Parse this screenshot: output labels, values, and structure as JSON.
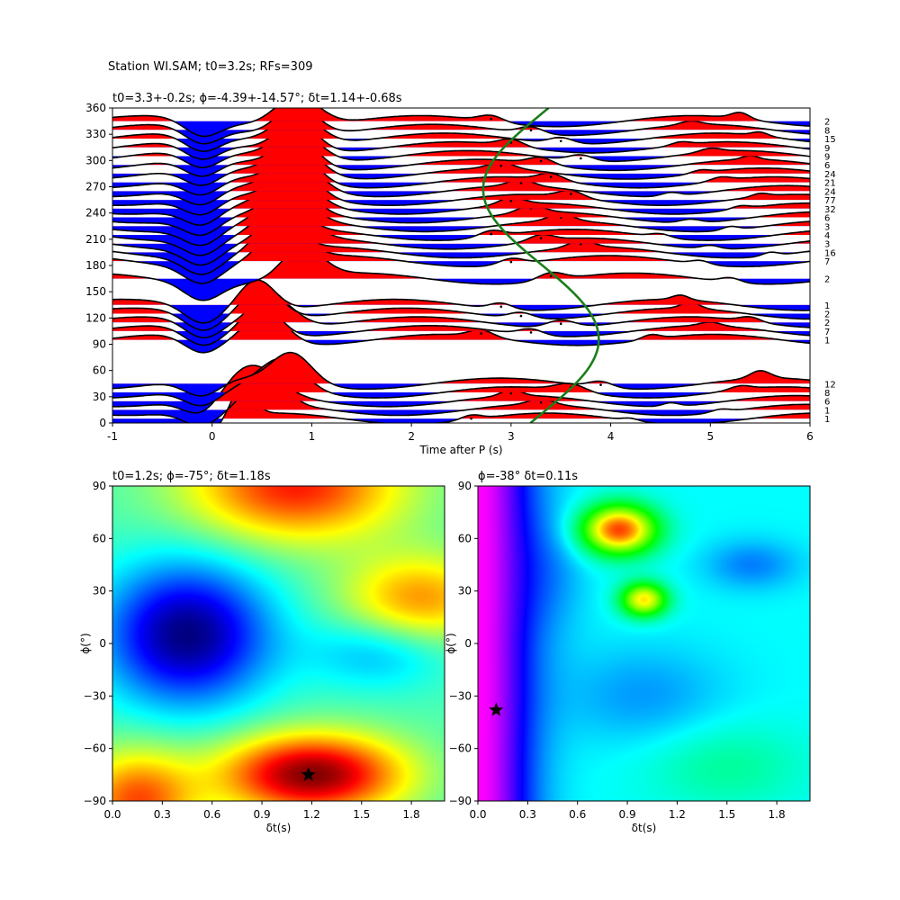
{
  "figure": {
    "suptitle": "Station WI.SAM; t0=3.2s; RFs=309"
  },
  "chart_data": [
    {
      "type": "line",
      "name": "receiver-function-wiggles",
      "title": "t0=3.3+-0.2s; ϕ=-4.39+-14.57°; δt=1.14+-0.68s",
      "xlabel": "Time after P (s)",
      "ylabel": "",
      "xlim": [
        -1,
        6
      ],
      "ylim": [
        0,
        360
      ],
      "xticks": [
        -1,
        0,
        1,
        2,
        3,
        4,
        5,
        6
      ],
      "yticks": [
        0,
        30,
        60,
        90,
        120,
        150,
        180,
        210,
        240,
        270,
        300,
        330,
        360
      ],
      "colors": {
        "positive": "#ff0000",
        "negative": "#0000ff",
        "curve": "#1a7f1a",
        "line": "#000000"
      },
      "traces": [
        {
          "baz": 5,
          "count": "1",
          "c": [
            [
              0.3,
              0.11,
              1.0
            ],
            [
              0.15,
              0.1,
              2.6
            ],
            [
              0.08,
              0.08,
              4.2
            ]
          ]
        },
        {
          "baz": 15,
          "count": "1",
          "c": [
            [
              0.55,
              0.18,
              0.5
            ],
            [
              0.18,
              0.12,
              3.3
            ],
            [
              0.1,
              0.09,
              5.1
            ]
          ]
        },
        {
          "baz": 25,
          "count": "6",
          "c": [
            [
              0.4,
              0.25,
              0.2
            ],
            [
              0.2,
              0.1,
              3.0
            ],
            [
              0.12,
              0.08,
              4.6
            ]
          ]
        },
        {
          "baz": 35,
          "count": "8",
          "c": [
            [
              0.7,
              0.22,
              0.8
            ],
            [
              0.25,
              0.15,
              3.6
            ],
            [
              0.12,
              0.1,
              5.3
            ]
          ]
        },
        {
          "baz": 45,
          "count": "12",
          "c": [
            [
              0.8,
              0.2,
              1.3
            ],
            [
              0.2,
              0.12,
              3.9
            ],
            [
              0.25,
              0.1,
              5.5
            ]
          ]
        },
        {
          "baz": 95,
          "count": "1",
          "c": [
            [
              0.55,
              0.2,
              1.1
            ],
            [
              0.22,
              0.12,
              2.7
            ],
            [
              0.15,
              0.09,
              4.4
            ]
          ]
        },
        {
          "baz": 105,
          "count": "7",
          "c": [
            [
              0.5,
              0.18,
              0.6
            ],
            [
              0.2,
              0.12,
              3.2
            ],
            [
              0.12,
              0.1,
              5.0
            ]
          ]
        },
        {
          "baz": 115,
          "count": "2",
          "c": [
            [
              0.6,
              0.22,
              0.9
            ],
            [
              0.25,
              0.14,
              3.5
            ],
            [
              0.15,
              0.1,
              5.4
            ]
          ]
        },
        {
          "baz": 125,
          "count": "2",
          "c": [
            [
              0.5,
              0.2,
              1.2
            ],
            [
              0.2,
              0.12,
              3.1
            ],
            [
              0.2,
              0.09,
              4.8
            ]
          ]
        },
        {
          "baz": 135,
          "count": "1",
          "c": [
            [
              0.45,
              0.18,
              0.4
            ],
            [
              0.2,
              0.11,
              2.9
            ],
            [
              0.15,
              0.08,
              4.7
            ]
          ]
        },
        {
          "baz": 165,
          "count": "2",
          "c": [
            [
              0.9,
              0.2,
              0.7
            ],
            [
              0.25,
              0.13,
              3.4
            ],
            [
              0.15,
              0.1,
              5.2
            ]
          ]
        },
        {
          "baz": 185,
          "count": "7",
          "c": [
            [
              0.7,
              0.22,
              1.0
            ],
            [
              0.2,
              0.12,
              3.0
            ],
            [
              0.12,
              0.09,
              4.9
            ]
          ]
        },
        {
          "baz": 195,
          "count": "16",
          "c": [
            [
              0.65,
              0.2,
              0.3
            ],
            [
              0.22,
              0.12,
              3.7
            ],
            [
              0.12,
              0.08,
              5.6
            ]
          ]
        },
        {
          "baz": 205,
          "count": "3",
          "c": [
            [
              0.75,
              0.22,
              0.8
            ],
            [
              0.2,
              0.12,
              3.3
            ],
            [
              0.12,
              0.09,
              5.0
            ]
          ]
        },
        {
          "baz": 215,
          "count": "4",
          "c": [
            [
              0.7,
              0.2,
              1.1
            ],
            [
              0.2,
              0.12,
              2.8
            ],
            [
              0.12,
              0.1,
              4.5
            ]
          ]
        },
        {
          "baz": 225,
          "count": "3",
          "c": [
            [
              0.75,
              0.22,
              0.5
            ],
            [
              0.22,
              0.12,
              3.5
            ],
            [
              0.12,
              0.08,
              5.2
            ]
          ]
        },
        {
          "baz": 235,
          "count": "6",
          "c": [
            [
              0.8,
              0.2,
              0.9
            ],
            [
              0.25,
              0.12,
              3.2
            ],
            [
              0.12,
              0.1,
              4.8
            ]
          ]
        },
        {
          "baz": 245,
          "count": "32",
          "c": [
            [
              0.8,
              0.22,
              1.2
            ],
            [
              0.22,
              0.12,
              3.0
            ],
            [
              0.1,
              0.09,
              5.3
            ]
          ]
        },
        {
          "baz": 255,
          "count": "77",
          "c": [
            [
              0.85,
              0.2,
              0.6
            ],
            [
              0.22,
              0.12,
              3.6
            ],
            [
              0.1,
              0.08,
              5.5
            ]
          ]
        },
        {
          "baz": 265,
          "count": "24",
          "c": [
            [
              0.85,
              0.22,
              1.0
            ],
            [
              0.2,
              0.12,
              3.1
            ],
            [
              0.12,
              0.09,
              4.6
            ]
          ]
        },
        {
          "baz": 275,
          "count": "21",
          "c": [
            [
              0.85,
              0.2,
              0.4
            ],
            [
              0.22,
              0.12,
              3.4
            ],
            [
              0.12,
              0.1,
              5.1
            ]
          ]
        },
        {
          "baz": 285,
          "count": "24",
          "c": [
            [
              0.85,
              0.22,
              0.8
            ],
            [
              0.2,
              0.12,
              2.9
            ],
            [
              0.1,
              0.09,
              4.9
            ]
          ]
        },
        {
          "baz": 295,
          "count": "6",
          "c": [
            [
              0.85,
              0.2,
              1.3
            ],
            [
              0.22,
              0.12,
              3.3
            ],
            [
              0.12,
              0.08,
              5.4
            ]
          ]
        },
        {
          "baz": 305,
          "count": "9",
          "c": [
            [
              0.85,
              0.22,
              0.7
            ],
            [
              0.2,
              0.12,
              3.7
            ],
            [
              0.12,
              0.1,
              5.0
            ]
          ]
        },
        {
          "baz": 315,
          "count": "9",
          "c": [
            [
              0.85,
              0.2,
              1.1
            ],
            [
              0.22,
              0.12,
              3.0
            ],
            [
              0.1,
              0.09,
              4.7
            ]
          ]
        },
        {
          "baz": 325,
          "count": "15",
          "c": [
            [
              0.85,
              0.22,
              0.3
            ],
            [
              0.2,
              0.12,
              3.5
            ],
            [
              0.12,
              0.08,
              5.5
            ]
          ]
        },
        {
          "baz": 335,
          "count": "8",
          "c": [
            [
              0.85,
              0.2,
              0.9
            ],
            [
              0.22,
              0.12,
              3.2
            ],
            [
              0.12,
              0.1,
              4.8
            ]
          ]
        },
        {
          "baz": 345,
          "count": "2",
          "c": [
            [
              0.85,
              0.22,
              1.2
            ],
            [
              0.2,
              0.12,
              2.8
            ],
            [
              0.2,
              0.09,
              5.3
            ]
          ]
        }
      ]
    },
    {
      "type": "heatmap",
      "name": "grid-search-left",
      "title": "t0=1.2s; ϕ=-75°; δt=1.18s",
      "xlabel": "δt(s)",
      "ylabel": "ϕ(°)",
      "xlim": [
        0,
        2
      ],
      "ylim": [
        -90,
        90
      ],
      "xticks": [
        0.0,
        0.3,
        0.6,
        0.9,
        1.2,
        1.5,
        1.8
      ],
      "yticks": [
        -90,
        -60,
        -30,
        0,
        30,
        60,
        90
      ],
      "colormap": "jet",
      "best": {
        "x": 1.18,
        "y": -75
      }
    },
    {
      "type": "heatmap",
      "name": "grid-search-right",
      "title": "ϕ=-38° δt=0.11s",
      "xlabel": "δt(s)",
      "ylabel": "ϕ(°)",
      "xlim": [
        0,
        2
      ],
      "ylim": [
        -90,
        90
      ],
      "xticks": [
        0.0,
        0.3,
        0.6,
        0.9,
        1.2,
        1.5,
        1.8
      ],
      "yticks": [
        -90,
        -60,
        -30,
        0,
        30,
        60,
        90
      ],
      "colormap": "gist_rainbow",
      "best": {
        "x": 0.11,
        "y": -38
      }
    }
  ]
}
